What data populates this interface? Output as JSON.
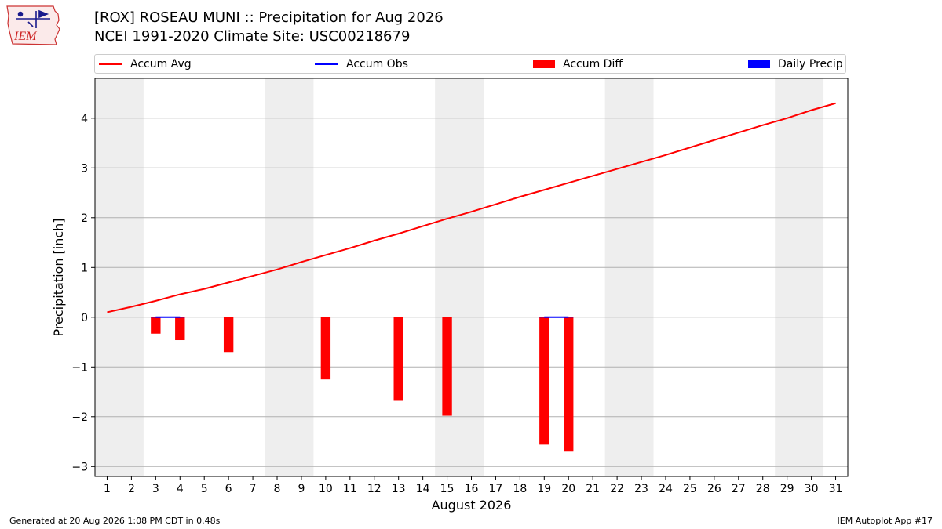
{
  "header": {
    "title_line1": "[ROX] ROSEAU MUNI :: Precipitation for Aug 2026",
    "title_line2": "NCEI 1991-2020 Climate Site: USC00218679",
    "logo_text": "IEM"
  },
  "legend": {
    "items": [
      {
        "label": "Accum Avg",
        "kind": "line",
        "color": "#ff0000"
      },
      {
        "label": "Accum Obs",
        "kind": "line",
        "color": "#0000ff"
      },
      {
        "label": "Accum Diff",
        "kind": "patch",
        "color": "#ff0000"
      },
      {
        "label": "Daily Precip",
        "kind": "patch",
        "color": "#0000ff"
      }
    ]
  },
  "footer": {
    "left": "Generated at 20 Aug 2026 1:08 PM CDT in 0.48s",
    "right": "IEM Autoplot App #17"
  },
  "colors": {
    "avg": "#ff0000",
    "obs": "#0000ff",
    "diff": "#ff0000",
    "daily": "#0000ff",
    "weekend_band": "#eeeeee",
    "grid": "#b0b0b0"
  },
  "chart_data": {
    "type": "bar",
    "title": "[ROX] ROSEAU MUNI :: Precipitation for Aug 2026",
    "subtitle": "NCEI 1991-2020 Climate Site: USC00218679",
    "xlabel": "August 2026",
    "ylabel": "Precipitation [inch]",
    "x": [
      1,
      2,
      3,
      4,
      5,
      6,
      7,
      8,
      9,
      10,
      11,
      12,
      13,
      14,
      15,
      16,
      17,
      18,
      19,
      20,
      21,
      22,
      23,
      24,
      25,
      26,
      27,
      28,
      29,
      30,
      31
    ],
    "xlim": [
      0.5,
      31.5
    ],
    "ylim": [
      -3.2,
      4.8
    ],
    "yticks": [
      -3,
      -2,
      -1,
      0,
      1,
      2,
      3,
      4
    ],
    "ytick_labels": [
      "−3",
      "−2",
      "−1",
      "0",
      "1",
      "2",
      "3",
      "4"
    ],
    "grid": "horizontal",
    "legend_position": "top",
    "weekend_bands": [
      [
        1,
        2
      ],
      [
        8,
        9
      ],
      [
        15,
        16
      ],
      [
        22,
        23
      ],
      [
        29,
        30
      ]
    ],
    "series": [
      {
        "name": "Accum Avg",
        "kind": "line",
        "x": [
          1,
          2,
          3,
          4,
          5,
          6,
          7,
          8,
          9,
          10,
          11,
          12,
          13,
          14,
          15,
          16,
          17,
          18,
          19,
          20,
          21,
          22,
          23,
          24,
          25,
          26,
          27,
          28,
          29,
          30,
          31
        ],
        "values": [
          0.1,
          0.21,
          0.33,
          0.46,
          0.57,
          0.7,
          0.83,
          0.96,
          1.11,
          1.25,
          1.39,
          1.54,
          1.68,
          1.83,
          1.98,
          2.12,
          2.27,
          2.42,
          2.56,
          2.7,
          2.84,
          2.98,
          3.12,
          3.26,
          3.41,
          3.56,
          3.71,
          3.86,
          4.0,
          4.16,
          4.3
        ]
      },
      {
        "name": "Accum Obs",
        "kind": "line",
        "x": [
          3,
          4,
          19,
          20
        ],
        "values": [
          0.0,
          0.0,
          0.0,
          0.0
        ]
      },
      {
        "name": "Accum Diff",
        "kind": "bar",
        "x": [
          3,
          4,
          6,
          10,
          13,
          15,
          19,
          20
        ],
        "values": [
          -0.33,
          -0.46,
          -0.7,
          -1.25,
          -1.68,
          -1.98,
          -2.56,
          -2.7
        ]
      },
      {
        "name": "Daily Precip",
        "kind": "bar",
        "x": [
          3,
          4,
          19,
          20
        ],
        "values": [
          0.0,
          0.0,
          0.0,
          0.0
        ]
      }
    ]
  }
}
